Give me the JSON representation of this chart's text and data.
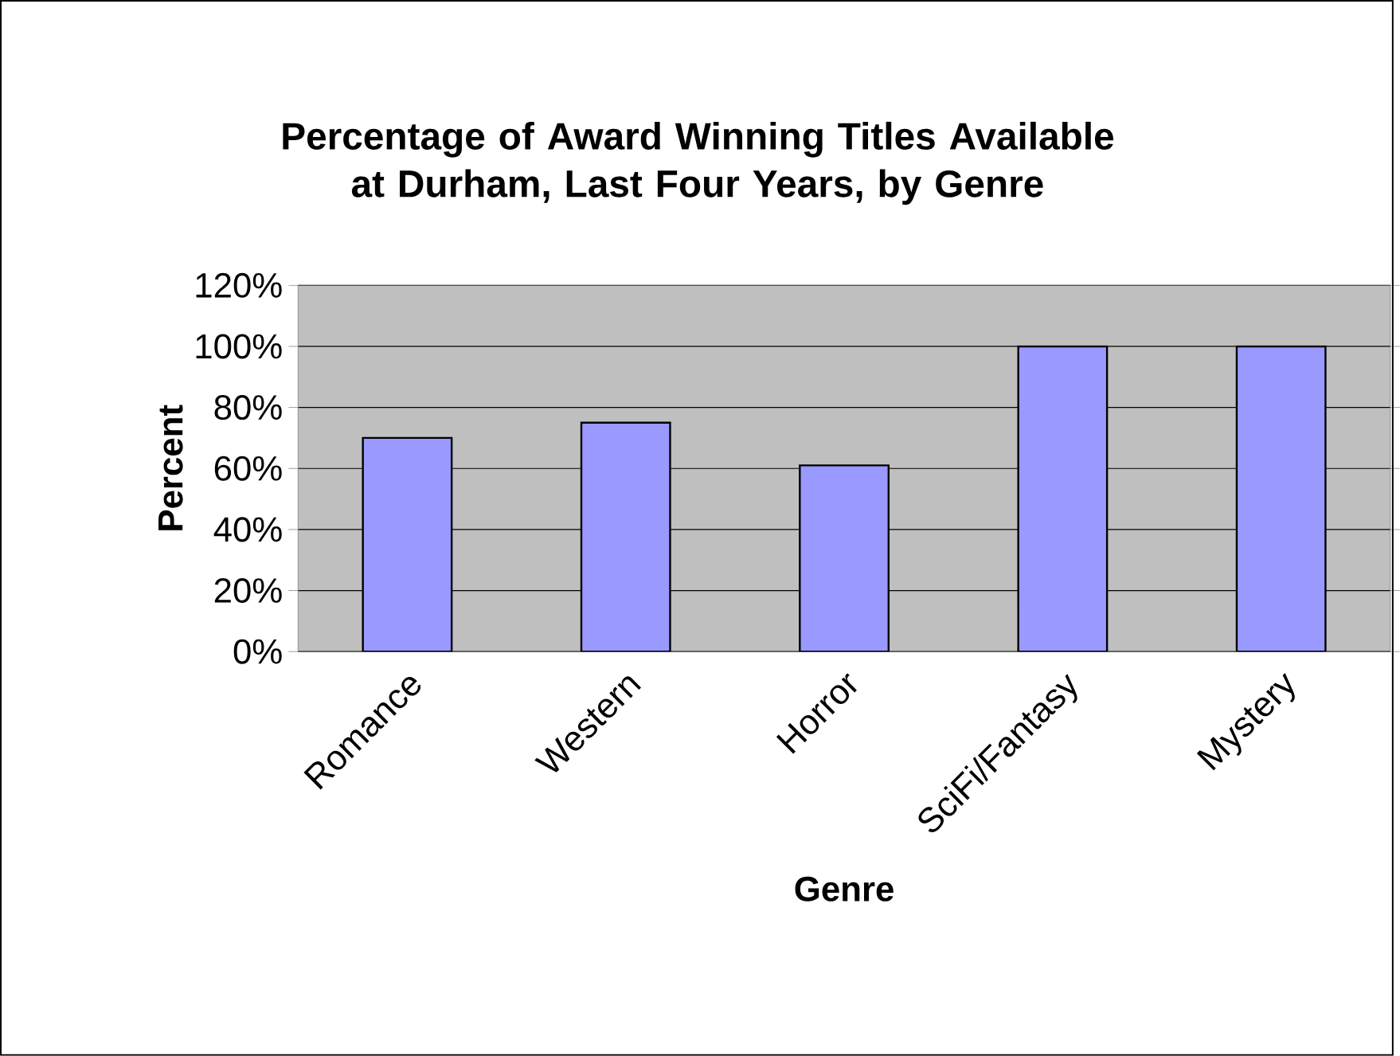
{
  "chart_data": {
    "type": "bar",
    "title": "Percentage of Award Winning Titles Available at Durham, Last Four Years, by Genre",
    "xlabel": "Genre",
    "ylabel": "Percent",
    "categories": [
      "Romance",
      "Western",
      "Horror",
      "SciFi/Fantasy",
      "Mystery"
    ],
    "values": [
      70,
      75,
      61,
      100,
      100
    ],
    "color": "#9999ff",
    "ylim": [
      0,
      120
    ],
    "yticks": [
      {
        "value": 0,
        "label": "0%"
      },
      {
        "value": 20,
        "label": "20%"
      },
      {
        "value": 40,
        "label": "40%"
      },
      {
        "value": 60,
        "label": "60%"
      },
      {
        "value": 80,
        "label": "80%"
      },
      {
        "value": 100,
        "label": "100%"
      },
      {
        "value": 120,
        "label": "120%"
      }
    ],
    "grid": "y"
  }
}
